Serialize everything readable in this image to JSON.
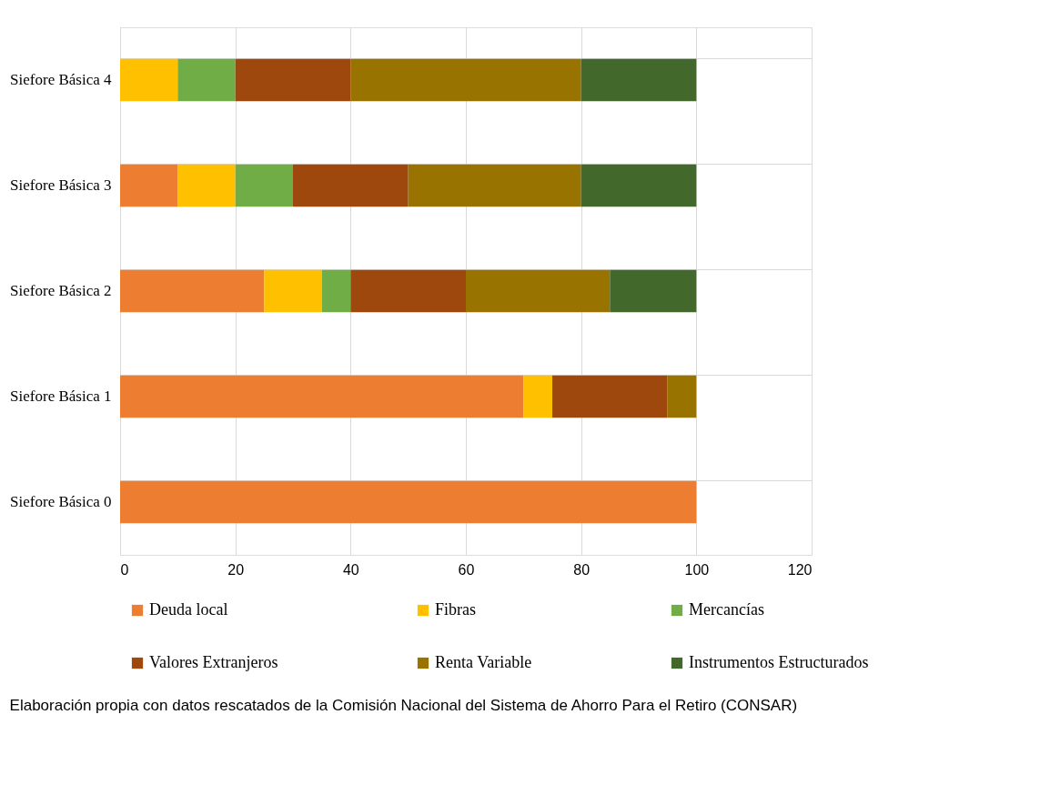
{
  "chart_data": {
    "type": "bar",
    "orientation": "horizontal",
    "stacked": true,
    "categories": [
      "Siefore Básica 4",
      "Siefore Básica 3",
      "Siefore Básica 2",
      "Siefore Básica 1",
      "Siefore Básica 0"
    ],
    "series": [
      {
        "name": "Deuda local",
        "color": "#ed7d31",
        "values": [
          null,
          10,
          25,
          70,
          100
        ]
      },
      {
        "name": "Fibras",
        "color": "#ffc000",
        "values": [
          10,
          10,
          10,
          5,
          null
        ]
      },
      {
        "name": "Mercancías",
        "color": "#70ad47",
        "values": [
          10,
          10,
          5,
          null,
          null
        ]
      },
      {
        "name": "Valores Extranjeros",
        "color": "#9e480e",
        "values": [
          20,
          20,
          20,
          20,
          null
        ]
      },
      {
        "name": "Renta Variable",
        "color": "#997300",
        "values": [
          40,
          30,
          25,
          5,
          null
        ]
      },
      {
        "name": "Instrumentos Estructurados",
        "color": "#43682b",
        "values": [
          20,
          20,
          15,
          null,
          null
        ]
      }
    ],
    "xlim": [
      0,
      120
    ],
    "xticks": [
      0,
      20,
      40,
      60,
      80,
      100,
      120
    ],
    "grid": true,
    "legend": "bottom",
    "annotations": [
      "Elaboración propia con datos rescatados de la Comisión Nacional del Sistema de Ahorro Para el Retiro (CONSAR)"
    ]
  }
}
